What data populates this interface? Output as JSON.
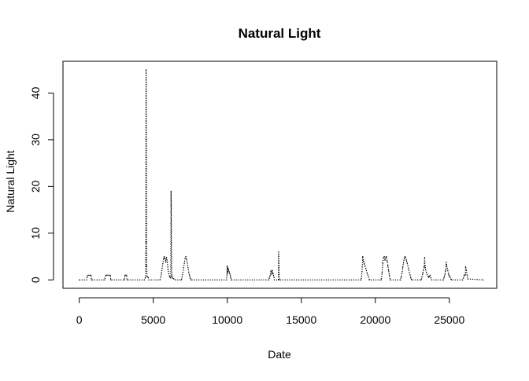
{
  "chart_data": {
    "type": "line",
    "title": "Natural Light",
    "xlabel": "Date",
    "ylabel": "Natural Light",
    "xlim": [
      -1100,
      28200
    ],
    "ylim": [
      -1.8,
      46.8
    ],
    "x_ticks": [
      0,
      5000,
      10000,
      15000,
      20000,
      25000
    ],
    "x_tick_labels": [
      "0",
      "5000",
      "10000",
      "15000",
      "20000",
      "25000"
    ],
    "y_ticks": [
      0,
      10,
      20,
      30,
      40
    ],
    "y_tick_labels": [
      "0",
      "10",
      "20",
      "30",
      "40"
    ],
    "grid": false,
    "legend": "none",
    "line_style": "dotted",
    "series": [
      {
        "x": [
          0,
          500,
          550,
          620,
          700,
          800,
          820,
          1700,
          1800,
          1860,
          1950,
          2100,
          2120,
          3050,
          3080,
          3140,
          3200,
          3230,
          4400,
          4450,
          4480,
          4500,
          4515,
          4530,
          4550,
          4580,
          4620,
          4660,
          4700,
          5450,
          5500,
          5550,
          5600,
          5650,
          5700,
          5750,
          5800,
          5850,
          5900,
          5950,
          6000,
          6050,
          6100,
          6150,
          6180,
          6200,
          6210,
          6230,
          6250,
          6300,
          6400,
          6500,
          6900,
          6950,
          7000,
          7050,
          7100,
          7150,
          7200,
          7250,
          7300,
          7350,
          7400,
          7450,
          7500,
          7550,
          9950,
          9980,
          10000,
          10030,
          10050,
          10100,
          10150,
          10200,
          10230,
          10260,
          12800,
          12850,
          12900,
          12950,
          13000,
          13050,
          13100,
          13150,
          13180,
          13450,
          13470,
          13490,
          13510,
          19050,
          19100,
          19150,
          19200,
          19250,
          19300,
          19350,
          19400,
          19450,
          19500,
          19550,
          19600,
          20400,
          20450,
          20500,
          20550,
          20600,
          20650,
          20700,
          20750,
          20800,
          20850,
          20900,
          20950,
          21000,
          21700,
          21750,
          21800,
          21850,
          21900,
          21950,
          22000,
          22050,
          22100,
          22150,
          22200,
          22250,
          22300,
          22350,
          22400,
          22450,
          23100,
          23150,
          23200,
          23250,
          23300,
          23330,
          23360,
          23400,
          23450,
          23500,
          23550,
          23600,
          23650,
          23700,
          23750,
          23800,
          24600,
          24650,
          24700,
          24750,
          24780,
          24820,
          24850,
          24900,
          24950,
          25000,
          25050,
          25100,
          25150,
          25900,
          25950,
          26000,
          26050,
          26080,
          26100,
          26150,
          26200,
          26250,
          27300
        ],
        "y": [
          0,
          0,
          0.8,
          1,
          1,
          1,
          0,
          0,
          1,
          1,
          1,
          1,
          0,
          0,
          1,
          1,
          1,
          0,
          0,
          0.4,
          0.5,
          8,
          45,
          30,
          3,
          0.8,
          0.6,
          0.5,
          0,
          0,
          0.6,
          1.4,
          2.5,
          3.5,
          4.6,
          5,
          4.5,
          3.8,
          4.8,
          3.8,
          2.2,
          1.3,
          0.7,
          0.5,
          0.4,
          19,
          16,
          8,
          0.8,
          0.4,
          0.2,
          0,
          0,
          0.6,
          1.6,
          2.6,
          3.6,
          4.6,
          5,
          4.4,
          3.6,
          2.6,
          1.6,
          0.9,
          0.4,
          0,
          0,
          1.2,
          3,
          1.5,
          2.5,
          2,
          1.5,
          1,
          0.5,
          0,
          0,
          0.5,
          1,
          2,
          1.2,
          2,
          1.3,
          0.6,
          0,
          0,
          6,
          3,
          0,
          0,
          1.8,
          5,
          4,
          3.5,
          3,
          2.5,
          2,
          1.4,
          1,
          0.6,
          0,
          0,
          1.5,
          3.5,
          4.8,
          5,
          4.2,
          4.8,
          5,
          4,
          3,
          2,
          1,
          0,
          0,
          0.6,
          1.4,
          2.6,
          3.6,
          4.6,
          5,
          4.8,
          4.2,
          3.6,
          3,
          2.4,
          1.6,
          1,
          0.4,
          0,
          0,
          0.6,
          1.4,
          2,
          2.8,
          4.8,
          3,
          2.2,
          1.6,
          1.2,
          0.8,
          0.5,
          0.8,
          1,
          0.4,
          0,
          0,
          0.6,
          1.2,
          2,
          3.8,
          3.2,
          2.5,
          2,
          1.2,
          0.8,
          0.5,
          0.2,
          0,
          0,
          0.4,
          1,
          1,
          1.2,
          2.8,
          2,
          1,
          0.2,
          0
        ]
      }
    ]
  }
}
